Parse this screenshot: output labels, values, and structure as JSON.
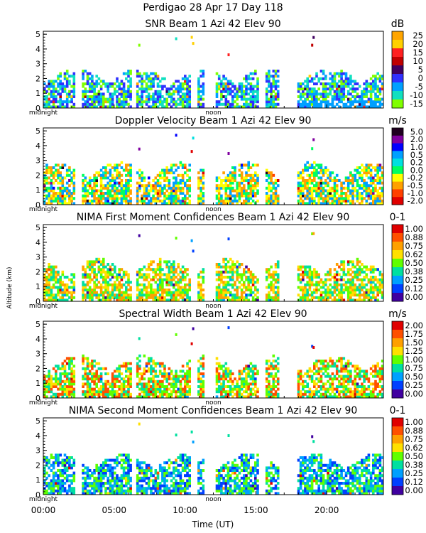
{
  "figure": {
    "title": "Perdigao  28 Apr 17 Day 118",
    "ylabel": "Altitude (km)",
    "xlabel": "Time (UT)",
    "x_ticks": [
      "00:00",
      "05:00",
      "10:00",
      "15:00",
      "20:00"
    ],
    "midnight_label": "midnight",
    "noon_label": "noon"
  },
  "chart_data": [
    {
      "type": "heatmap",
      "title": "SNR Beam 1 Azi  42 Elev 90",
      "units": "dB",
      "y_ticks": [
        "0",
        "1",
        "2",
        "3",
        "4",
        "5"
      ],
      "ylim": [
        0,
        5.2
      ],
      "xlim_hours": [
        0,
        24
      ],
      "colorbar_labels": [
        "25",
        "20",
        "15",
        "10",
        "5",
        "0",
        "-5",
        "-10",
        "-15"
      ],
      "colorbar_colors": [
        "#ffa500",
        "#ffd000",
        "#ff2020",
        "#c00000",
        "#400060",
        "#3030ff",
        "#00a0ff",
        "#10e0c0",
        "#80ff00"
      ],
      "dominant_levels": [
        "-15",
        "-10",
        "-5",
        "0"
      ],
      "layer_top_km": 2.6
    },
    {
      "type": "heatmap",
      "title": "Doppler Velocity Beam 1 Azi  42 Elev 90",
      "units": "m/s",
      "y_ticks": [
        "0",
        "1",
        "2",
        "3",
        "4",
        "5"
      ],
      "ylim": [
        0,
        5.2
      ],
      "xlim_hours": [
        0,
        24
      ],
      "colorbar_labels": [
        "5.0",
        "2.0",
        "1.0",
        "0.5",
        "0.2",
        "0.0",
        "-0.2",
        "-0.5",
        "-1.0",
        "-2.0"
      ],
      "colorbar_colors": [
        "#200020",
        "#8000a0",
        "#0000ff",
        "#00a0ff",
        "#00e0e0",
        "#00ff60",
        "#ffff00",
        "#ffa000",
        "#ff4000",
        "#e00000"
      ],
      "dominant_levels": [
        "-0.5",
        "-0.2",
        "0.0",
        "0.5"
      ],
      "layer_top_km": 2.8
    },
    {
      "type": "heatmap",
      "title": "NIMA First Moment Confidences Beam 1 Azi  42 Elev 90",
      "units": "0-1",
      "y_ticks": [
        "0",
        "1",
        "2",
        "3",
        "4",
        "5"
      ],
      "ylim": [
        0,
        5.2
      ],
      "xlim_hours": [
        0,
        24
      ],
      "colorbar_labels": [
        "1.00",
        "0.88",
        "0.75",
        "0.62",
        "0.50",
        "0.38",
        "0.25",
        "0.12",
        "0.00"
      ],
      "colorbar_colors": [
        "#e00000",
        "#ff5000",
        "#ffa000",
        "#ffe000",
        "#60ff00",
        "#00e0a0",
        "#00a0ff",
        "#0040ff",
        "#4000a0"
      ],
      "dominant_levels": [
        "0.75",
        "0.62",
        "0.50",
        "0.38"
      ],
      "layer_top_km": 2.8
    },
    {
      "type": "heatmap",
      "title": "Spectral Width Beam 1 Azi  42 Elev 90",
      "units": "m/s",
      "y_ticks": [
        "0",
        "1",
        "2",
        "3",
        "4",
        "5"
      ],
      "ylim": [
        0,
        5.2
      ],
      "xlim_hours": [
        0,
        24
      ],
      "colorbar_labels": [
        "2.00",
        "1.75",
        "1.50",
        "1.25",
        "1.00",
        "0.75",
        "0.50",
        "0.25",
        "0.00"
      ],
      "colorbar_colors": [
        "#e00000",
        "#ff5000",
        "#ffa000",
        "#ffe000",
        "#60ff00",
        "#00e0a0",
        "#00a0ff",
        "#0040ff",
        "#4000a0"
      ],
      "dominant_levels": [
        "1.75",
        "1.25",
        "1.00",
        "0.75"
      ],
      "layer_top_km": 2.8
    },
    {
      "type": "heatmap",
      "title": "NIMA Second Moment Confidences Beam 1 Azi  42 Elev 90",
      "units": "0-1",
      "y_ticks": [
        "0",
        "1",
        "2",
        "3",
        "4",
        "5"
      ],
      "ylim": [
        0,
        5.2
      ],
      "xlim_hours": [
        0,
        24
      ],
      "colorbar_labels": [
        "1.00",
        "0.88",
        "0.75",
        "0.62",
        "0.50",
        "0.38",
        "0.25",
        "0.12",
        "0.00"
      ],
      "colorbar_colors": [
        "#e00000",
        "#ff5000",
        "#ffa000",
        "#ffe000",
        "#60ff00",
        "#00e0a0",
        "#00a0ff",
        "#0040ff",
        "#4000a0"
      ],
      "dominant_levels": [
        "0.38",
        "0.25",
        "0.50",
        "0.12"
      ],
      "layer_top_km": 2.7
    }
  ]
}
